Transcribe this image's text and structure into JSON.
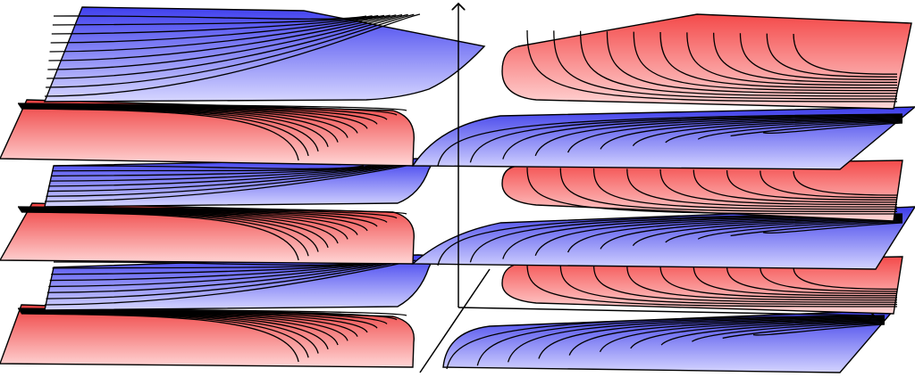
{
  "figure": {
    "description_visible_text": "",
    "colors": {
      "red_sheet_dark": "#f04848",
      "red_sheet_light": "#ffd2d2",
      "blue_sheet_dark": "#4444ee",
      "blue_sheet_light": "#d2d2ff",
      "contour_line": "#000000",
      "axis_line": "#000000",
      "background": "#ffffff"
    },
    "layers": [
      {
        "name": "top-layer",
        "left_color": "blue",
        "right_color": "red"
      },
      {
        "name": "second-layer",
        "left_color": "red",
        "right_color": "blue",
        "crossover": "connected"
      },
      {
        "name": "third-layer",
        "left_color": "blue",
        "right_color": "red"
      },
      {
        "name": "fourth-layer",
        "left_color": "red",
        "right_color": "blue",
        "crossover": "connected"
      },
      {
        "name": "fifth-layer",
        "left_color": "blue",
        "right_color": "red"
      },
      {
        "name": "bottom-layer",
        "left_color": "red",
        "right_color": "blue"
      }
    ],
    "axes": [
      "vertical-axis",
      "horizontal-axis",
      "depth-axis"
    ]
  }
}
